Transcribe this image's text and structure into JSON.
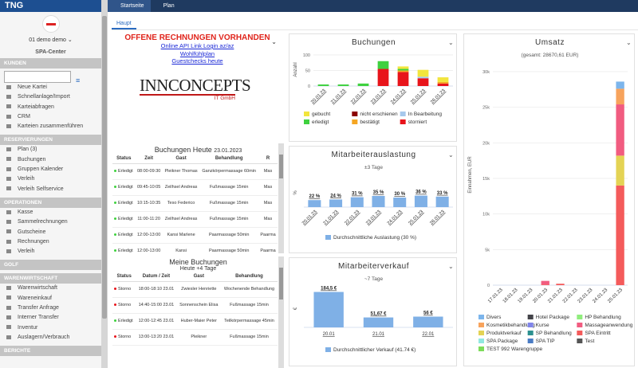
{
  "sidebar": {
    "brand": "TNG",
    "user": "01 demo demo",
    "location": "SPA-Center",
    "sections": [
      {
        "title": "KUNDEN",
        "items": [
          "Neue Kartei",
          "Schnellanlage/Import",
          "Karteiabfragen",
          "CRM",
          "Karteien zusammenführen"
        ]
      },
      {
        "title": "RESERVIERUNGEN",
        "items": [
          "Plan (3)",
          "Buchungen",
          "Gruppen Kalender",
          "Verleih",
          "Verleih Selfservice"
        ]
      },
      {
        "title": "OPERATIONEN",
        "items": [
          "Kasse",
          "Sammelrechnungen",
          "Gutscheine",
          "Rechnungen",
          "Verleih"
        ]
      },
      {
        "title": "GOLF",
        "items": []
      },
      {
        "title": "WARENWIRTSCHAFT",
        "items": [
          "Warenwirtschaft",
          "Wareneinkauf",
          "Transfer Anfrage",
          "Interner Transfer",
          "Inventur",
          "Auslagern/Verbrauch"
        ]
      },
      {
        "title": "BERICHTE",
        "items": []
      }
    ]
  },
  "tabs": [
    "Startseite",
    "Plan"
  ],
  "subtab": "Haupt",
  "notice": {
    "title": "OFFENE RECHNUNGEN VORHANDEN",
    "links": [
      "Online API Link Login az/az",
      "Wohlfühlplan",
      "Guestchecks heute"
    ]
  },
  "logo": {
    "name": "INNCONCEPTS",
    "sub": "IT GmbH"
  },
  "today": {
    "title": "Buchungen Heute",
    "date": "23.01.2023",
    "columns": [
      "Status",
      "Zeit",
      "Gast",
      "Behandlung",
      "R"
    ],
    "rows": [
      [
        "Erledigt",
        "08:00-09:30",
        "Pleikner Thomas",
        "Ganzkörpermassage 60min",
        "Mas"
      ],
      [
        "Erledigt",
        "09:45-10:05",
        "Zeilhsel Andreas",
        "Fußmassage 15min",
        "Mas"
      ],
      [
        "Erledigt",
        "10:15-10:35",
        "Teso Federico",
        "Fußmassage 15min",
        "Mas"
      ],
      [
        "Erledigt",
        "11:00-11:20",
        "Zeilhsel Andreas",
        "Fußmassage 15min",
        "Mas"
      ],
      [
        "Erledigt",
        "12:00-13:00",
        "Kansi Marlene",
        "Paarmassage 50min",
        "Paarma"
      ],
      [
        "Erledigt",
        "12:00-13:00",
        "Kansi",
        "Paarmassage 50min",
        "Paarma"
      ]
    ]
  },
  "mine": {
    "title": "Meine Buchungen",
    "subtitle": "Heute +4 Tage",
    "columns": [
      "Status",
      "Datum / Zeit",
      "Gast",
      "Behandlung"
    ],
    "rows": [
      [
        "Storno",
        "18:00-18:10 23.01",
        "Zwiesler Henriette",
        "Wochenende Behandlung"
      ],
      [
        "Storno",
        "14:40-15:00 23.01",
        "Sonnenschein Elisa",
        "Fußmassage 15min"
      ],
      [
        "Erledigt",
        "12:00-12:45 23.01",
        "Huber-Maier Peter",
        "Teilkörpermassage 45min"
      ],
      [
        "Storno",
        "13:00-13:20 23.01",
        "Pleikner",
        "Fußmassage 15min"
      ]
    ]
  },
  "chart_data": [
    {
      "type": "bar",
      "title": "Buchungen",
      "y_label": "Anzahl",
      "categories": [
        "20.01.23",
        "21.01.23",
        "22.01.23",
        "23.01.23",
        "24.01.23",
        "25.01.23",
        "26.01.23"
      ],
      "ylim": [
        0,
        105
      ],
      "yticks": [
        0,
        50,
        100
      ],
      "grid": true,
      "series": [
        {
          "name": "gebucht",
          "color": "#f2e53d",
          "values": [
            0,
            0,
            0,
            0,
            8,
            22,
            15
          ]
        },
        {
          "name": "nicht erschienen",
          "color": "#8b0000",
          "values": [
            0,
            0,
            0,
            0,
            0,
            0,
            0
          ]
        },
        {
          "name": "In Bearbeitung",
          "color": "#a6c8ec",
          "values": [
            0,
            0,
            0,
            0,
            0,
            5,
            0
          ]
        },
        {
          "name": "erledigt",
          "color": "#3fd13f",
          "values": [
            5,
            5,
            8,
            25,
            5,
            0,
            0
          ]
        },
        {
          "name": "bestätigt",
          "color": "#f5a623",
          "values": [
            0,
            0,
            0,
            0,
            5,
            0,
            5
          ]
        },
        {
          "name": "storniert",
          "color": "#e8141b",
          "values": [
            0,
            0,
            0,
            55,
            45,
            25,
            8
          ]
        }
      ]
    },
    {
      "type": "bar",
      "title": "Mitarbeiterauslastung",
      "subtitle": "±3 Tage",
      "y_label": "%",
      "categories": [
        "20.01.23",
        "21.01.23",
        "22.01.23",
        "23.01.23",
        "24.01.23",
        "25.01.23",
        "26.01.23"
      ],
      "ylim": [
        0,
        90
      ],
      "values": [
        22,
        24,
        31,
        35,
        30,
        36,
        33
      ],
      "value_labels": [
        "22 %",
        "24 %",
        "31 %",
        "35 %",
        "30 %",
        "36 %",
        "33 %"
      ],
      "color": "#7fb0e6",
      "legend": "Durchschnittliche Auslastung (30 %)"
    },
    {
      "type": "bar",
      "title": "Mitarbeiterverkauf",
      "subtitle": "~7 Tage",
      "y_label": "€",
      "categories": [
        "20.01",
        "21.01",
        "22.01"
      ],
      "ylim": [
        0,
        195
      ],
      "values": [
        184.5,
        51.67,
        56
      ],
      "value_labels": [
        "184,5 €",
        "51,67 €",
        "56 €"
      ],
      "color": "#7fb0e6",
      "legend": "Durchschnittlicher Verkauf (41.74 €)"
    },
    {
      "type": "bar",
      "title": "Umsatz",
      "subtitle": "(gesamt: 28670,61 EUR)",
      "y_label": "Einnahmen, EUR",
      "categories": [
        "17.01.23",
        "18.01.23",
        "19.01.23",
        "20.01.23",
        "21.01.23",
        "22.01.23",
        "23.01.23",
        "24.01.23",
        "25.01.23"
      ],
      "ylim": [
        0,
        31000
      ],
      "yticks": [
        0,
        {
          "value": 5000,
          "label": "5k"
        },
        {
          "value": 10000,
          "label": "10k"
        },
        {
          "value": 15000,
          "label": "15k"
        },
        {
          "value": 20000,
          "label": "20k"
        },
        {
          "value": 25000,
          "label": "25k"
        },
        {
          "value": 30000,
          "label": "30k"
        }
      ],
      "grid": true,
      "series": [
        {
          "name": "Divers",
          "color": "#7cb5ec",
          "values": [
            0,
            0,
            0,
            0,
            0,
            0,
            0,
            0,
            1000
          ]
        },
        {
          "name": "Hotel Package",
          "color": "#434348",
          "values": [
            0,
            0,
            0,
            0,
            0,
            0,
            0,
            0,
            0
          ]
        },
        {
          "name": "HP Behandlung",
          "color": "#90ed7d",
          "values": [
            0,
            0,
            0,
            0,
            0,
            0,
            0,
            0,
            0
          ]
        },
        {
          "name": "Kosmetikbehandlung",
          "color": "#f7a35c",
          "values": [
            0,
            0,
            0,
            0,
            0,
            0,
            0,
            0,
            2200
          ]
        },
        {
          "name": "Kurse",
          "color": "#8085e9",
          "values": [
            0,
            0,
            0,
            0,
            0,
            0,
            0,
            0,
            0
          ]
        },
        {
          "name": "Massageanwendung",
          "color": "#f15c80",
          "values": [
            0,
            0,
            0,
            500,
            0,
            0,
            0,
            0,
            7200
          ]
        },
        {
          "name": "Produktverkauf",
          "color": "#e4d354",
          "values": [
            0,
            0,
            0,
            0,
            0,
            0,
            0,
            0,
            4200
          ]
        },
        {
          "name": "SP Behandlung",
          "color": "#2b908f",
          "values": [
            0,
            0,
            0,
            0,
            0,
            0,
            0,
            0,
            0
          ]
        },
        {
          "name": "SPA Eintritt",
          "color": "#f45b5b",
          "values": [
            0,
            0,
            0,
            100,
            200,
            0,
            0,
            0,
            14000
          ]
        },
        {
          "name": "SPA Package",
          "color": "#91e8e1",
          "values": [
            0,
            0,
            0,
            0,
            0,
            0,
            0,
            0,
            0
          ]
        },
        {
          "name": "SPA TIP",
          "color": "#4a7cc4",
          "values": [
            0,
            0,
            0,
            0,
            0,
            0,
            0,
            0,
            0
          ]
        },
        {
          "name": "Test",
          "color": "#555555",
          "values": [
            0,
            0,
            0,
            0,
            0,
            0,
            0,
            0,
            0
          ]
        },
        {
          "name": "TEST 992 Warengruppe",
          "color": "#7ddc5a",
          "values": [
            0,
            0,
            0,
            0,
            0,
            0,
            0,
            0,
            0
          ]
        }
      ]
    }
  ]
}
